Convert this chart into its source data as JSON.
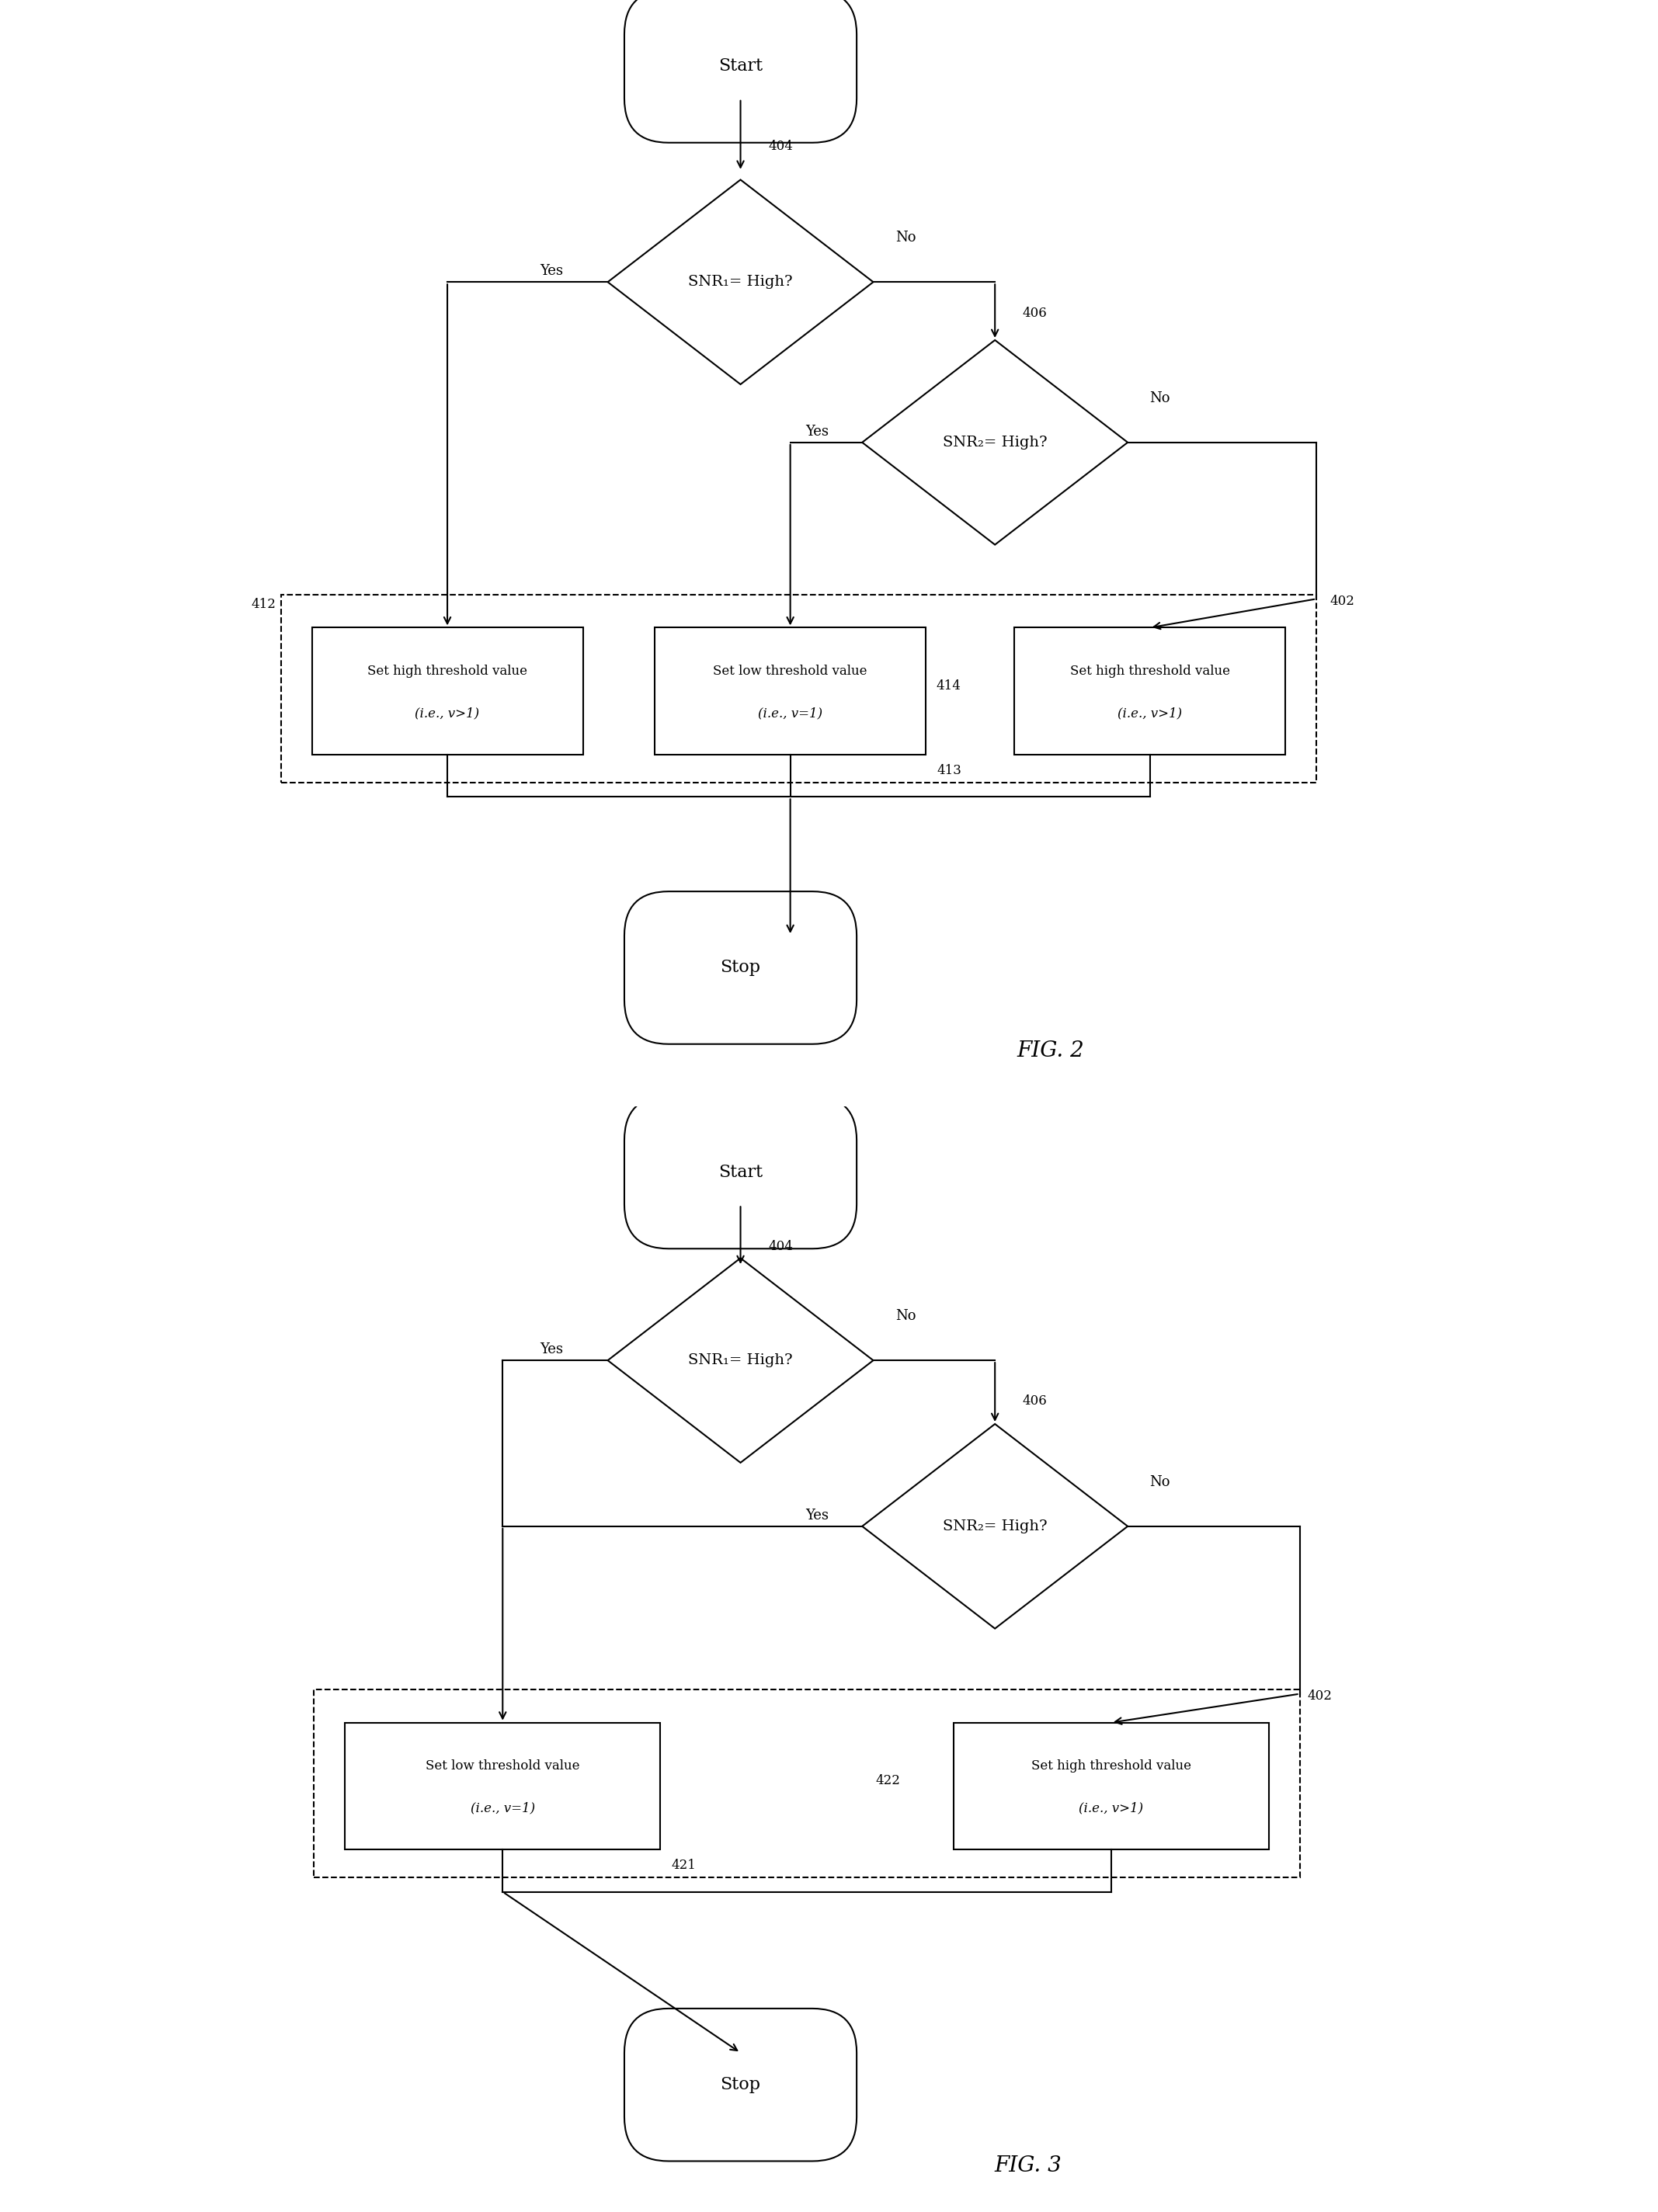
{
  "bg_color": "#ffffff",
  "line_color": "#000000",
  "fig2": {
    "title": "FIG. 2",
    "start_text": "Start",
    "diamond1_label": "404",
    "diamond1_text": "SNR₁= High?",
    "diamond2_label": "406",
    "diamond2_text": "SNR₂= High?",
    "box1_label": "412",
    "box1_line1": "Set high threshold value",
    "box1_line2": "(i.e., v>1)",
    "box2_label": "413",
    "box2_line1": "Set low threshold value",
    "box2_line2": "(i.e., v=1)",
    "box3_label": "414",
    "box3_ref_label": "402",
    "box3_line1": "Set high threshold value",
    "box3_line2": "(i.e., v>1)",
    "stop_text": "Stop",
    "fig_label": "FIG. 2"
  },
  "fig3": {
    "title": "FIG. 3",
    "start_text": "Start",
    "diamond1_label": "404",
    "diamond1_text": "SNR₁= High?",
    "diamond2_label": "406",
    "diamond2_text": "SNR₂= High?",
    "box1_label": "421",
    "box1_line1": "Set low threshold value",
    "box1_line2": "(i.e., v=1)",
    "box2_label": "422",
    "box2_ref_label": "402",
    "box2_line1": "Set high threshold value",
    "box2_line2": "(i.e., v>1)",
    "stop_text": "Stop",
    "fig_label": "FIG. 3"
  }
}
